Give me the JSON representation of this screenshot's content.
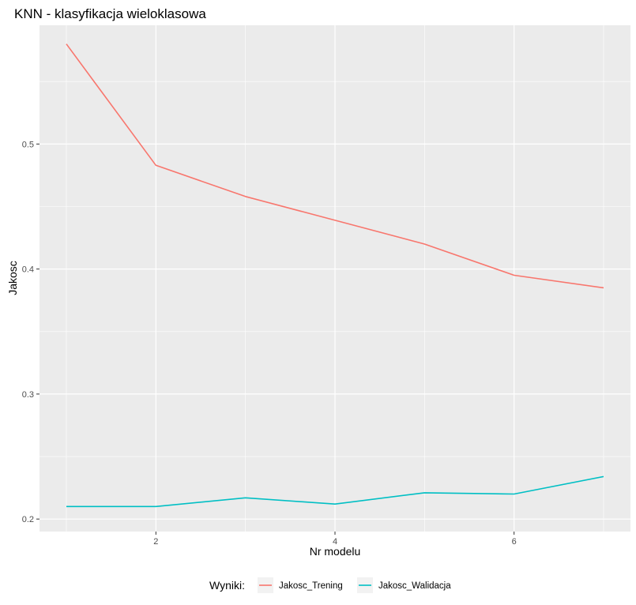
{
  "chart_data": {
    "type": "line",
    "title": "KNN - klasyfikacja wieloklasowa",
    "xlabel": "Nr modelu",
    "ylabel": "Jakosc",
    "x": [
      1,
      2,
      3,
      4,
      5,
      6,
      7
    ],
    "xticks": [
      2,
      4,
      6
    ],
    "xtick_labels": [
      "2",
      "4",
      "6"
    ],
    "yticks": [
      0.2,
      0.3,
      0.4,
      0.5
    ],
    "ytick_labels": [
      "0.2",
      "0.3",
      "0.4",
      "0.5"
    ],
    "xlim": [
      0.7,
      7.3
    ],
    "ylim": [
      0.19,
      0.595
    ],
    "grid": true,
    "legend_title": "Wyniki:",
    "legend_position": "bottom",
    "series": [
      {
        "name": "Jakosc_Trening",
        "color": "#F8766D",
        "values": [
          0.58,
          0.483,
          0.458,
          0.439,
          0.42,
          0.395,
          0.385
        ]
      },
      {
        "name": "Jakosc_Walidacja",
        "color": "#00BFC4",
        "values": [
          0.21,
          0.21,
          0.217,
          0.212,
          0.221,
          0.22,
          0.234
        ]
      }
    ]
  }
}
